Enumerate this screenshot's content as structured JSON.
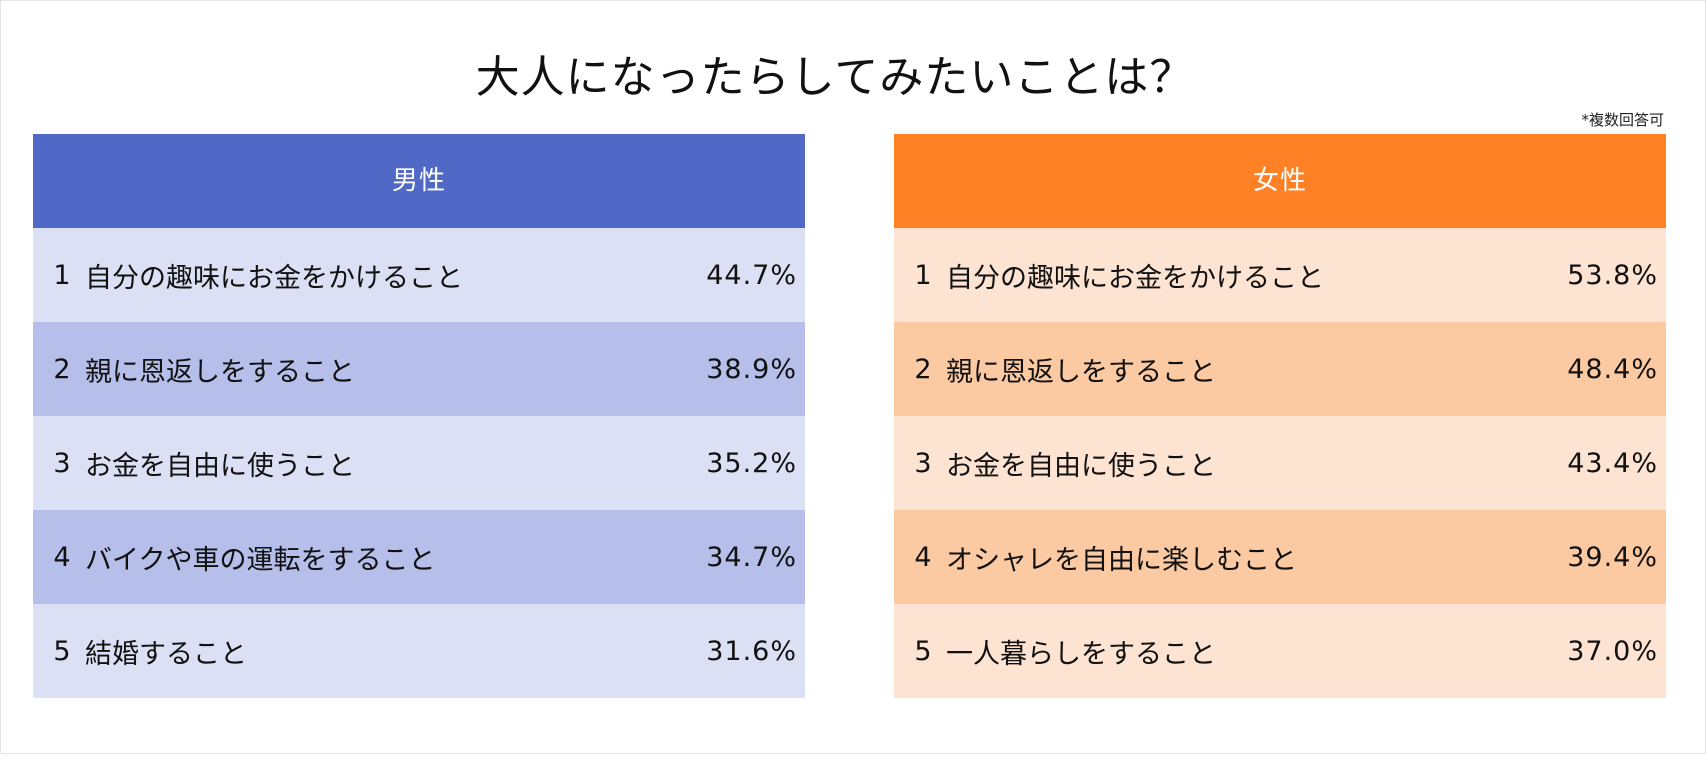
{
  "title": "大人になったらしてみたいことは？",
  "note": "*複数回答可",
  "colors": {
    "male_header": "#5068C6",
    "male_row_light": "#DCE0F4",
    "male_row_dark": "#B5BFEA",
    "female_header": "#FF8125",
    "female_row_light": "#FDE3D2",
    "female_row_dark": "#FCCAA2"
  },
  "chart_data": [
    {
      "type": "table",
      "title": "男性",
      "unit": "%",
      "rows": [
        {
          "rank": "1",
          "label": "自分の趣味にお金をかけること",
          "value": 44.7,
          "display": "44.7%"
        },
        {
          "rank": "2",
          "label": "親に恩返しをすること",
          "value": 38.9,
          "display": "38.9%"
        },
        {
          "rank": "3",
          "label": "お金を自由に使うこと",
          "value": 35.2,
          "display": "35.2%"
        },
        {
          "rank": "4",
          "label": "バイクや車の運転をすること",
          "value": 34.7,
          "display": "34.7%"
        },
        {
          "rank": "5",
          "label": "結婚すること",
          "value": 31.6,
          "display": "31.6%"
        }
      ]
    },
    {
      "type": "table",
      "title": "女性",
      "unit": "%",
      "rows": [
        {
          "rank": "1",
          "label": "自分の趣味にお金をかけること",
          "value": 53.8,
          "display": "53.8%"
        },
        {
          "rank": "2",
          "label": "親に恩返しをすること",
          "value": 48.4,
          "display": "48.4%"
        },
        {
          "rank": "3",
          "label": "お金を自由に使うこと",
          "value": 43.4,
          "display": "43.4%"
        },
        {
          "rank": "4",
          "label": "オシャレを自由に楽しむこと",
          "value": 39.4,
          "display": "39.4%"
        },
        {
          "rank": "5",
          "label": "一人暮らしをすること",
          "value": 37.0,
          "display": "37.0%"
        }
      ]
    }
  ]
}
